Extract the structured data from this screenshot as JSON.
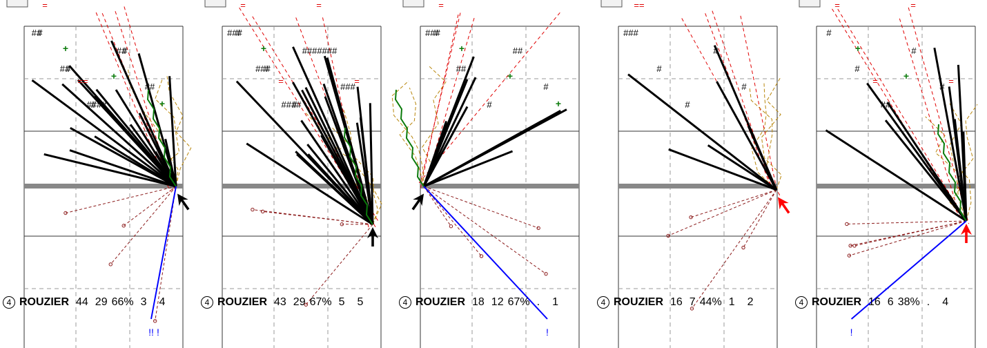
{
  "panels": [
    {
      "badge": "4",
      "player": "ROUZIER",
      "stats": [
        "44",
        "29",
        "66%",
        "3",
        "4"
      ],
      "hash_labels": [
        "##",
        "##",
        "#",
        "##",
        "##",
        "#",
        "#",
        "####",
        "#"
      ],
      "plus_labels": [
        "+",
        "+",
        "+"
      ],
      "eq_labels": [
        "=",
        "=="
      ],
      "bang_labels": [
        "!!",
        "!"
      ]
    },
    {
      "badge": "4",
      "player": "ROUZIER",
      "stats": [
        "43",
        "29",
        "67%",
        "5",
        "5"
      ],
      "hash_labels": [
        "###",
        "###",
        "####",
        "#######",
        "###",
        "#",
        "#",
        "#"
      ],
      "plus_labels": [
        "+"
      ],
      "eq_labels": [
        "=",
        "=",
        "=",
        "="
      ],
      "bang_labels": []
    },
    {
      "badge": "4",
      "player": "ROUZIER",
      "stats": [
        "18",
        "12",
        "67%",
        ".",
        "1"
      ],
      "hash_labels": [
        "###",
        "##",
        "#",
        "##",
        "#",
        "#"
      ],
      "plus_labels": [
        "+",
        "+",
        "+"
      ],
      "eq_labels": [
        "="
      ],
      "bang_labels": [
        "!"
      ]
    },
    {
      "badge": "4",
      "player": "ROUZIER",
      "stats": [
        "16",
        "7",
        "44%",
        "1",
        "2"
      ],
      "hash_labels": [
        "###",
        "#",
        "#",
        "#",
        "#"
      ],
      "plus_labels": [],
      "eq_labels": [
        "=="
      ],
      "bang_labels": []
    },
    {
      "badge": "4",
      "player": "ROUZIER",
      "stats": [
        "16",
        "6",
        "38%",
        ".",
        "4"
      ],
      "hash_labels": [
        "#",
        "#",
        "##",
        "#",
        "#"
      ],
      "plus_labels": [
        "+",
        "+"
      ],
      "eq_labels": [
        "=",
        "=",
        "=",
        "="
      ],
      "bang_labels": [
        "!"
      ]
    }
  ],
  "colors": {
    "ink": "#000000",
    "grid_solid": "#333333",
    "grid_dash": "#999999",
    "midline": "#888888",
    "red": "#e00000",
    "darkred": "#8b1a1a",
    "gold": "#b8860b",
    "green": "#0a7a0a",
    "blue": "#0000ff",
    "arrow_black": "#000000",
    "arrow_red": "#ff0000"
  },
  "chart_data": {
    "type": "table",
    "columns": [
      "badge",
      "player",
      "stat1",
      "stat2",
      "pct",
      "stat4",
      "stat5"
    ],
    "rows": [
      [
        "4",
        "ROUZIER",
        "44",
        "29",
        "66%",
        "3",
        "4"
      ],
      [
        "4",
        "ROUZIER",
        "43",
        "29",
        "67%",
        "5",
        "5"
      ],
      [
        "4",
        "ROUZIER",
        "18",
        "12",
        "67%",
        ".",
        "1"
      ],
      [
        "4",
        "ROUZIER",
        "16",
        "7",
        "44%",
        "1",
        "2"
      ],
      [
        "4",
        "ROUZIER",
        "16",
        "6",
        "38%",
        ".",
        "4"
      ]
    ]
  }
}
